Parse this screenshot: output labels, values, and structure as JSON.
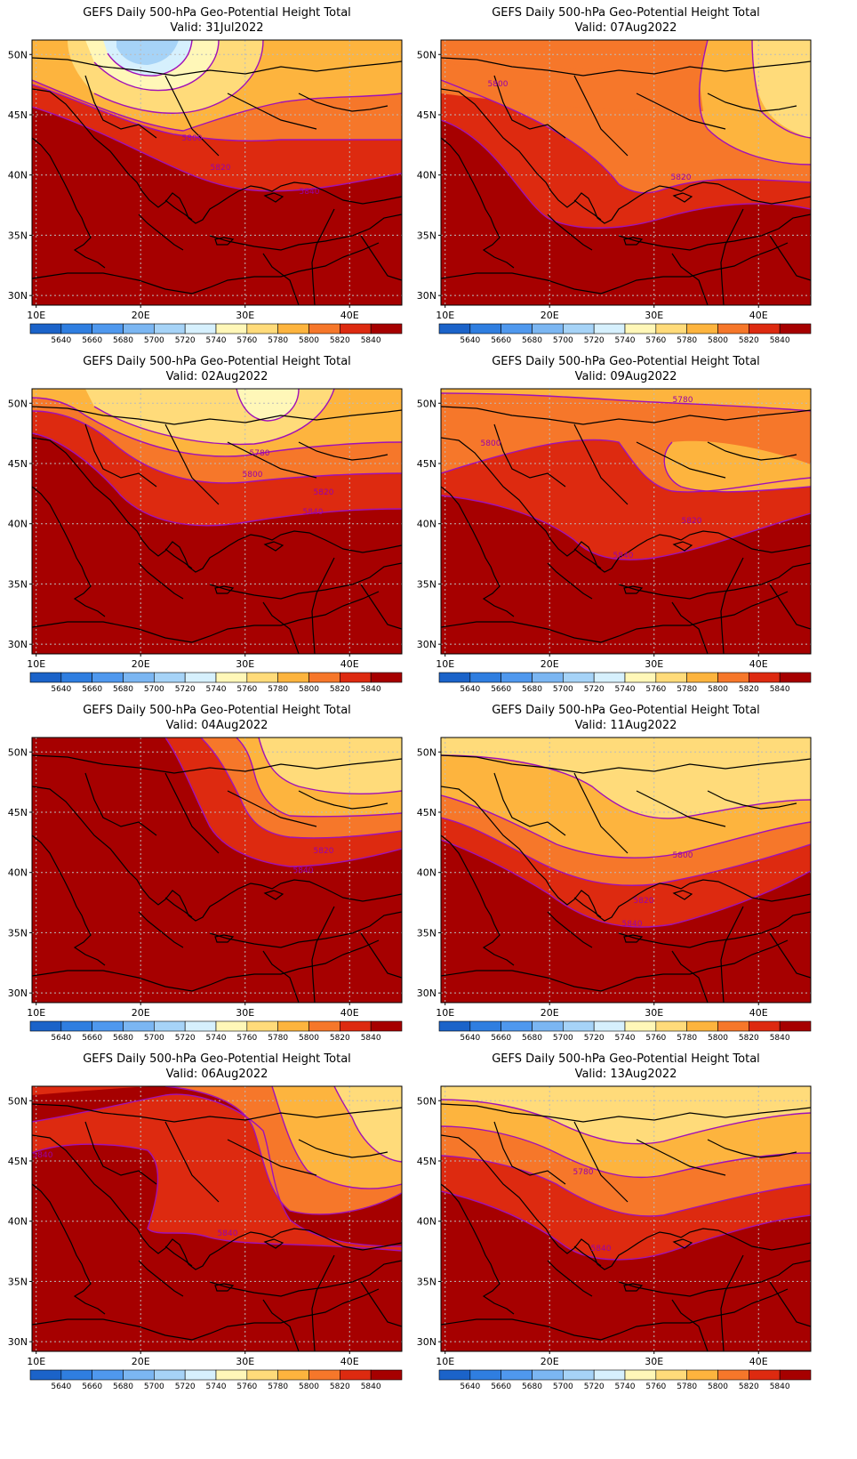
{
  "panels": [
    {
      "title": "GEFS Daily 500-hPa Geo-Potential Height Total",
      "valid": "Valid: 31Jul2022",
      "state": "p31jul",
      "contour_labels": [
        "5800",
        "5820",
        "5840"
      ]
    },
    {
      "title": "GEFS Daily 500-hPa Geo-Potential Height Total",
      "valid": "Valid: 07Aug2022",
      "state": "p07aug",
      "contour_labels": [
        "5800",
        "5820"
      ]
    },
    {
      "title": "GEFS Daily 500-hPa Geo-Potential Height Total",
      "valid": "Valid: 02Aug2022",
      "state": "p02aug",
      "contour_labels": [
        "5780",
        "5800",
        "5820",
        "5840"
      ]
    },
    {
      "title": "GEFS Daily 500-hPa Geo-Potential Height Total",
      "valid": "Valid: 09Aug2022",
      "state": "p09aug",
      "contour_labels": [
        "5780",
        "5800",
        "5820",
        "5840"
      ]
    },
    {
      "title": "GEFS Daily 500-hPa Geo-Potential Height Total",
      "valid": "Valid: 04Aug2022",
      "state": "p04aug",
      "contour_labels": [
        "5820",
        "5840"
      ]
    },
    {
      "title": "GEFS Daily 500-hPa Geo-Potential Height Total",
      "valid": "Valid: 11Aug2022",
      "state": "p11aug",
      "contour_labels": [
        "5800",
        "5820",
        "5840"
      ]
    },
    {
      "title": "GEFS Daily 500-hPa Geo-Potential Height Total",
      "valid": "Valid: 06Aug2022",
      "state": "p06aug",
      "contour_labels": [
        "5840",
        "5840"
      ]
    },
    {
      "title": "GEFS Daily 500-hPa Geo-Potential Height Total",
      "valid": "Valid: 13Aug2022",
      "state": "p13aug",
      "contour_labels": [
        "5780",
        "5840"
      ]
    }
  ],
  "axes": {
    "lon_labels": [
      "10E",
      "20E",
      "30E",
      "40E"
    ],
    "lat_labels": [
      "50N",
      "45N",
      "40N",
      "35N",
      "30N"
    ]
  },
  "colorbar": {
    "labels": [
      "5640",
      "5660",
      "5680",
      "5700",
      "5720",
      "5740",
      "5760",
      "5780",
      "5800",
      "5820",
      "5840"
    ],
    "colors": [
      "#1b63c9",
      "#2f7ee0",
      "#4f98ee",
      "#7bb6f2",
      "#a6d3f7",
      "#d6f0fd",
      "#fff7b8",
      "#ffdb7a",
      "#fdb43e",
      "#f6772a",
      "#dd2a10",
      "#a60000"
    ]
  },
  "colors": {
    "contour": "#a010b8",
    "coast": "#000000",
    "grid": "#bbbbbb"
  }
}
